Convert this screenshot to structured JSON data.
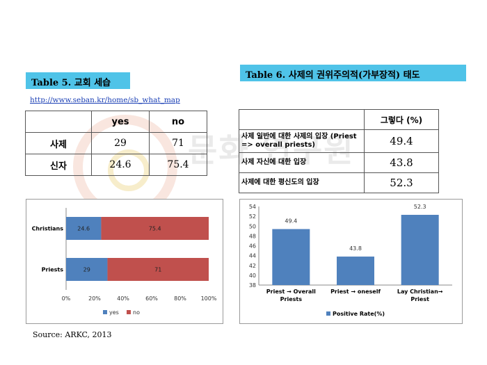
{
  "table5": {
    "title": "Table 5. 교회 세습",
    "link": "http://www.seban.kr/home/sb_what_map",
    "headers": [
      "",
      "yes",
      "no"
    ],
    "rows": [
      {
        "label": "사제",
        "yes": "29",
        "no": "71"
      },
      {
        "label": "신자",
        "yes": "24.6",
        "no": "75.4"
      }
    ]
  },
  "table6": {
    "title": "Table 6. 사제의 권위주의적(가부장적) 태도",
    "header": "그렇다 (%)",
    "rows": [
      {
        "label": "사제 일반에 대한 사제의 입장 (Priest => overall priests)",
        "value": "49.4"
      },
      {
        "label": "사제 자신에 대한 입장",
        "value": "43.8"
      },
      {
        "label": "사제에 대한 평신도의 입장",
        "value": "52.3"
      }
    ]
  },
  "source": "Source: ARKC, 2013",
  "watermark": "문화 연구원",
  "colors": {
    "yes": "#4f81bd",
    "no": "#c0504d",
    "bar": "#4f81bd",
    "title_bg": "#4fc3e8"
  },
  "chart_data": [
    {
      "type": "bar",
      "orientation": "horizontal",
      "stacked": true,
      "percent": true,
      "categories": [
        "Priests",
        "Christians"
      ],
      "series": [
        {
          "name": "yes",
          "values": [
            29,
            24.6
          ]
        },
        {
          "name": "no",
          "values": [
            71,
            75.4
          ]
        }
      ],
      "xticks": [
        "0%",
        "20%",
        "40%",
        "60%",
        "80%",
        "100%"
      ],
      "xlim": [
        0,
        100
      ],
      "legend": "bottom",
      "grid": false
    },
    {
      "type": "bar",
      "categories": [
        "Priest → Overall Priests",
        "Priest → oneself",
        "Lay Christian→ Priest"
      ],
      "series": [
        {
          "name": "Positive Rate(%)",
          "values": [
            49.4,
            43.8,
            52.3
          ]
        }
      ],
      "ylim": [
        38,
        54
      ],
      "yticks": [
        "38",
        "40",
        "42",
        "44",
        "46",
        "48",
        "50",
        "52",
        "54"
      ],
      "legend": "bottom",
      "grid": false
    }
  ]
}
